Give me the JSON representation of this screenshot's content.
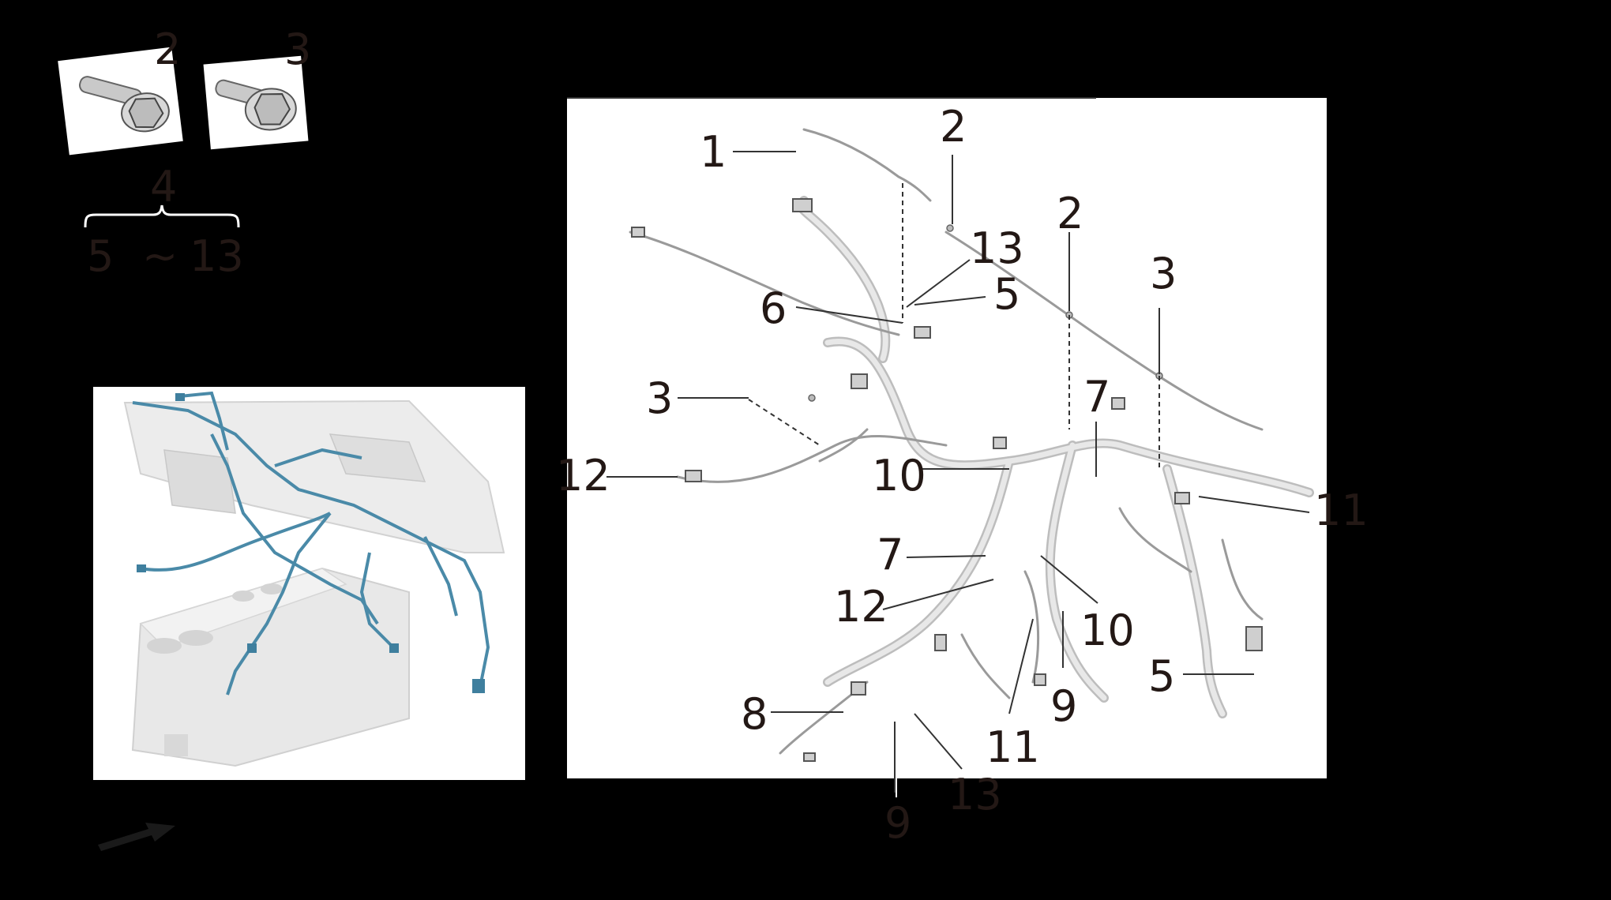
{
  "hardware_parts": {
    "bolt_a_callout": "2",
    "bolt_b_callout": "3"
  },
  "harness_group": {
    "assembly_callout": "4",
    "component_range": {
      "from": "5",
      "separator": "~",
      "to": "13"
    }
  },
  "exploded_view": {
    "callouts": {
      "c1": "1",
      "c2_top": "2",
      "c2_mid": "2",
      "c3_left": "3",
      "c3_right": "3",
      "c13_top": "13",
      "c5_top": "5",
      "c6": "6",
      "c7_top": "7",
      "c10_mid": "10",
      "c11_right": "11",
      "c12_left": "12",
      "c7_mid": "7",
      "c12_mid": "12",
      "c10_low": "10",
      "c5_right": "5",
      "c8": "8",
      "c9_low": "9",
      "c11_low": "11",
      "c9_bottom": "9",
      "c13_bottom": "13"
    }
  },
  "colors": {
    "background": "#000000",
    "panel": "#ffffff",
    "callout_text": "#231815",
    "harness_highlight": "#4a8aa8",
    "harness_gray": "#cfcfcf",
    "dashboard_gray": "#e6e6e6"
  }
}
